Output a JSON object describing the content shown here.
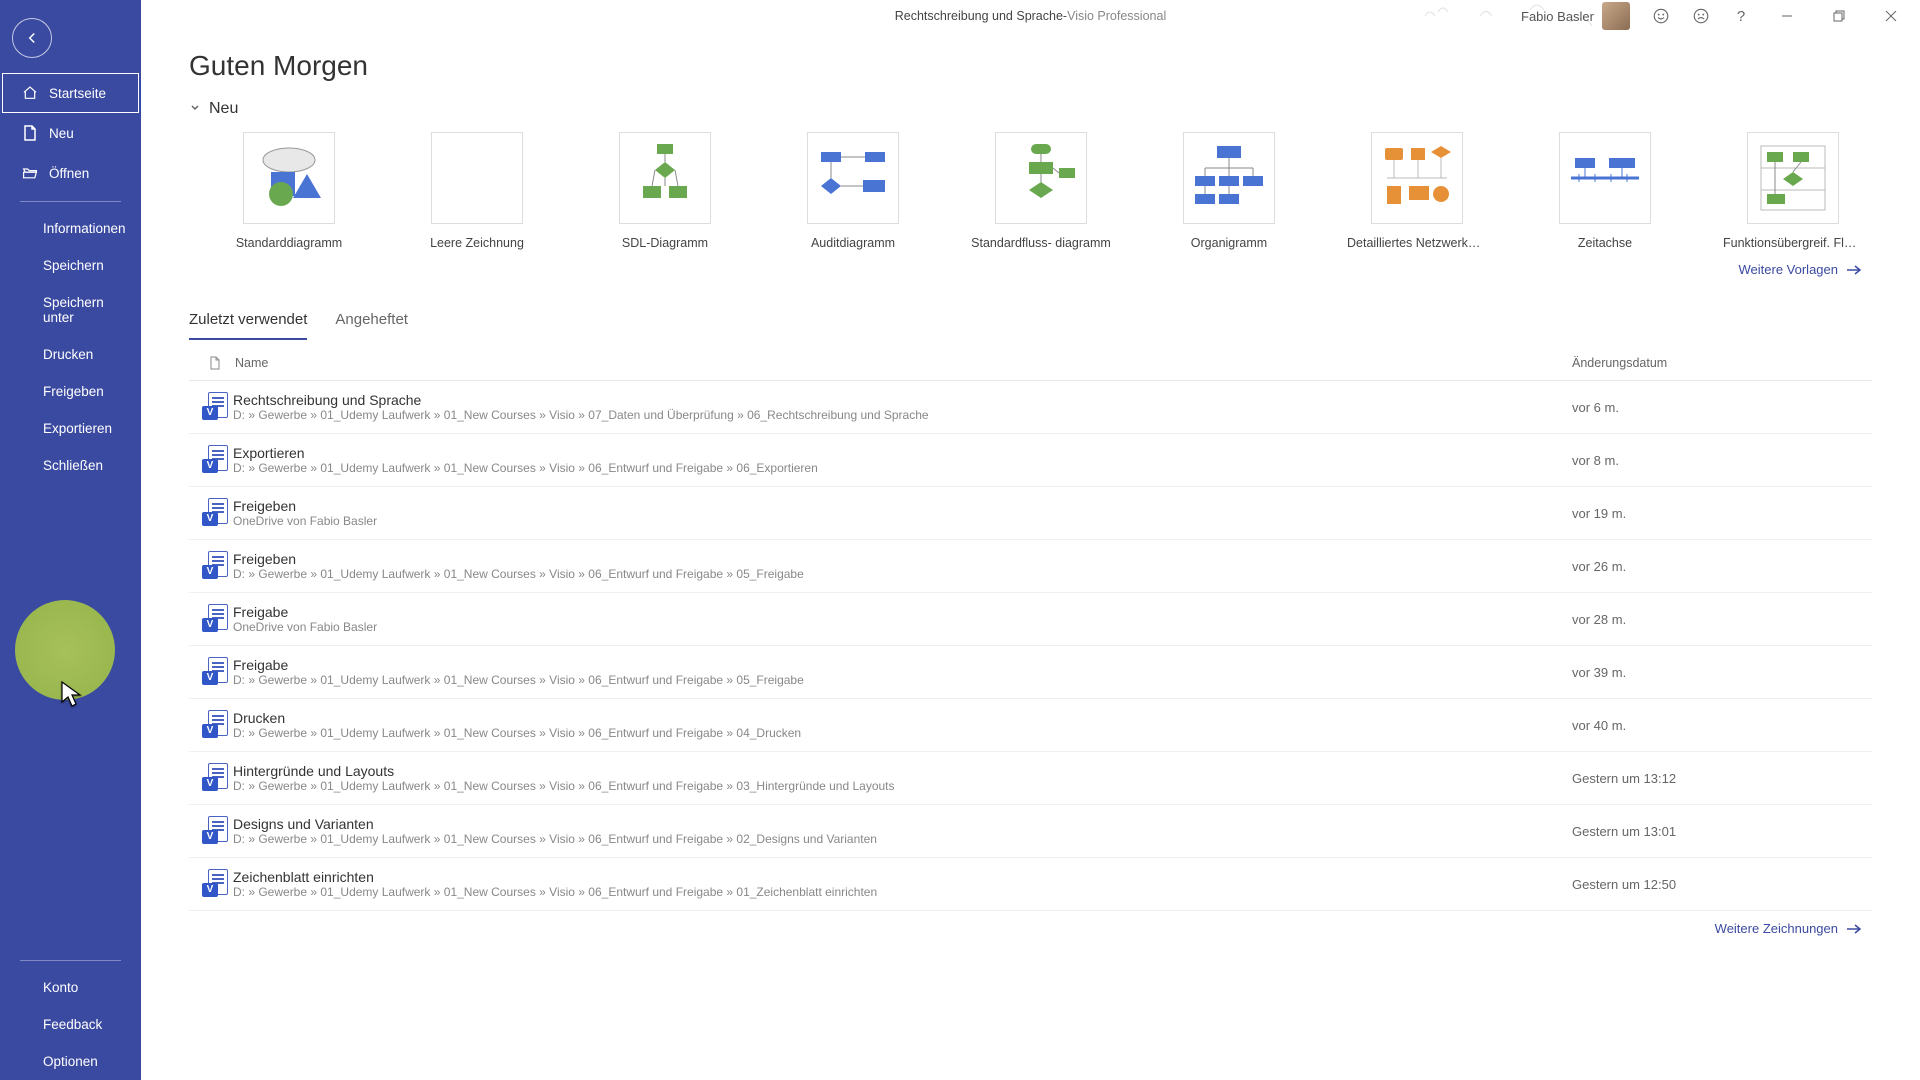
{
  "titlebar": {
    "document": "Rechtschreibung und Sprache",
    "separator": "  -  ",
    "app": "Visio Professional",
    "user": "Fabio Basler"
  },
  "sidebar": {
    "main": [
      {
        "key": "startseite",
        "label": "Startseite",
        "icon": "home",
        "selected": true
      },
      {
        "key": "neu",
        "label": "Neu",
        "icon": "new"
      },
      {
        "key": "oeffnen",
        "label": "Öffnen",
        "icon": "open"
      }
    ],
    "file": [
      {
        "key": "informationen",
        "label": "Informationen"
      },
      {
        "key": "speichern",
        "label": "Speichern"
      },
      {
        "key": "speichern-unter",
        "label": "Speichern unter"
      },
      {
        "key": "drucken",
        "label": "Drucken"
      },
      {
        "key": "freigeben",
        "label": "Freigeben"
      },
      {
        "key": "exportieren",
        "label": "Exportieren"
      },
      {
        "key": "schliessen",
        "label": "Schließen"
      }
    ],
    "bottom": [
      {
        "key": "konto",
        "label": "Konto"
      },
      {
        "key": "feedback",
        "label": "Feedback"
      },
      {
        "key": "optionen",
        "label": "Optionen"
      }
    ]
  },
  "greeting": "Guten Morgen",
  "section_new": "Neu",
  "templates": [
    {
      "key": "standarddiagramm",
      "label": "Standarddiagramm",
      "thumb": "shapes"
    },
    {
      "key": "leere",
      "label": "Leere Zeichnung",
      "thumb": "blank"
    },
    {
      "key": "sdl",
      "label": "SDL-Diagramm",
      "thumb": "sdl"
    },
    {
      "key": "audit",
      "label": "Auditdiagramm",
      "thumb": "audit"
    },
    {
      "key": "standardfluss",
      "label": "Standardfluss- diagramm",
      "thumb": "flow"
    },
    {
      "key": "organigramm",
      "label": "Organigramm",
      "thumb": "org"
    },
    {
      "key": "netzwerk",
      "label": "Detailliertes Netzwerkdiagra...",
      "thumb": "network"
    },
    {
      "key": "zeitachse",
      "label": "Zeitachse",
      "thumb": "timeline"
    },
    {
      "key": "crossfunc",
      "label": "Funktionsübergreif. Flussdia...",
      "thumb": "cross"
    }
  ],
  "more_templates": "Weitere Vorlagen",
  "tabs": {
    "recent": "Zuletzt verwendet",
    "pinned": "Angeheftet"
  },
  "list_headers": {
    "name": "Name",
    "date": "Änderungsdatum"
  },
  "files": [
    {
      "name": "Rechtschreibung und Sprache",
      "path": "D: » Gewerbe » 01_Udemy Laufwerk » 01_New Courses » Visio » 07_Daten und Überprüfung » 06_Rechtschreibung und Sprache",
      "date": "vor 6 m."
    },
    {
      "name": "Exportieren",
      "path": "D: » Gewerbe » 01_Udemy Laufwerk » 01_New Courses » Visio » 06_Entwurf und Freigabe » 06_Exportieren",
      "date": "vor 8 m."
    },
    {
      "name": "Freigeben",
      "path": "OneDrive von Fabio Basler",
      "date": "vor 19 m."
    },
    {
      "name": "Freigeben",
      "path": "D: » Gewerbe » 01_Udemy Laufwerk » 01_New Courses » Visio » 06_Entwurf und Freigabe » 05_Freigabe",
      "date": "vor 26 m."
    },
    {
      "name": "Freigabe",
      "path": "OneDrive von Fabio Basler",
      "date": "vor 28 m."
    },
    {
      "name": "Freigabe",
      "path": "D: » Gewerbe » 01_Udemy Laufwerk » 01_New Courses » Visio » 06_Entwurf und Freigabe » 05_Freigabe",
      "date": "vor 39 m."
    },
    {
      "name": "Drucken",
      "path": "D: » Gewerbe » 01_Udemy Laufwerk » 01_New Courses » Visio » 06_Entwurf und Freigabe » 04_Drucken",
      "date": "vor 40 m."
    },
    {
      "name": "Hintergründe und Layouts",
      "path": "D: » Gewerbe » 01_Udemy Laufwerk » 01_New Courses » Visio » 06_Entwurf und Freigabe » 03_Hintergründe und Layouts",
      "date": "Gestern um 13:12"
    },
    {
      "name": "Designs und Varianten",
      "path": "D: » Gewerbe » 01_Udemy Laufwerk » 01_New Courses » Visio » 06_Entwurf und Freigabe » 02_Designs und Varianten",
      "date": "Gestern um 13:01"
    },
    {
      "name": "Zeichenblatt einrichten",
      "path": "D: » Gewerbe » 01_Udemy Laufwerk » 01_New Courses » Visio » 06_Entwurf und Freigabe » 01_Zeichenblatt einrichten",
      "date": "Gestern um 12:50"
    }
  ],
  "more_drawings": "Weitere Zeichnungen",
  "colors": {
    "sidebar_bg": "#3b4aa1",
    "accent": "#3b4aa1",
    "highlight_spot": "#a7c05a"
  }
}
